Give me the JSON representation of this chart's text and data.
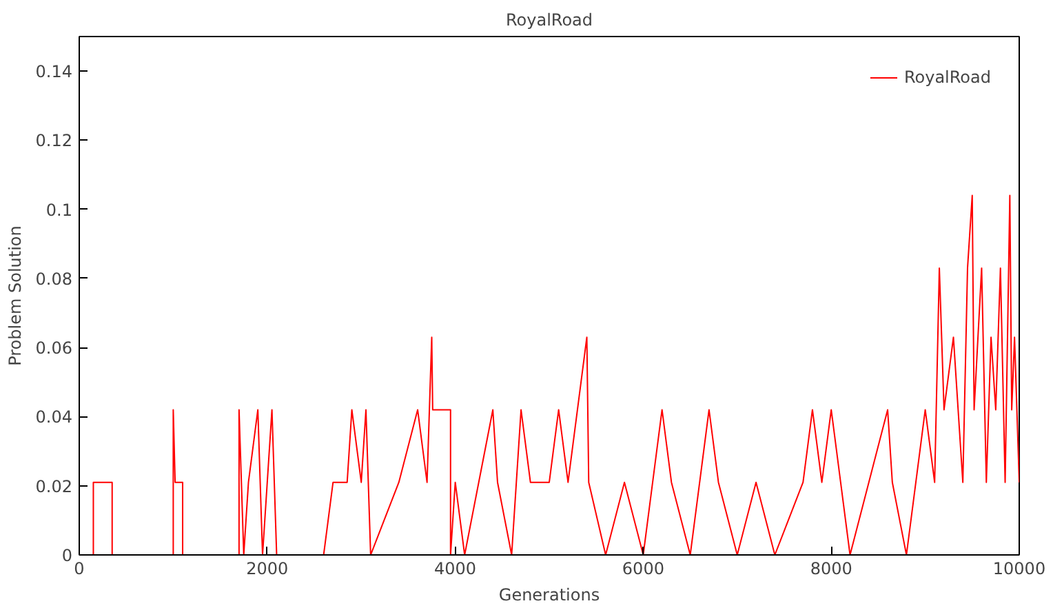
{
  "chart_data": {
    "type": "line",
    "title": "RoyalRoad",
    "xlabel": "Generations",
    "ylabel": "Problem Solution",
    "xlim": [
      0,
      10000
    ],
    "ylim": [
      0,
      0.15
    ],
    "xticks": [
      0,
      2000,
      4000,
      6000,
      8000,
      10000
    ],
    "yticks": [
      0,
      0.02,
      0.04,
      0.06,
      0.08,
      0.1,
      0.12,
      0.14
    ],
    "grid": false,
    "legend": "top right",
    "line_style": "solid",
    "series": [
      {
        "name": "RoyalRoad",
        "color": "#ff0000",
        "x": [
          0,
          150,
          150,
          350,
          350,
          1000,
          1000,
          1020,
          1100,
          1100,
          1700,
          1700,
          1750,
          1800,
          1900,
          1950,
          2000,
          2050,
          2100,
          2600,
          2700,
          2850,
          2900,
          3000,
          3050,
          3100,
          3400,
          3600,
          3700,
          3750,
          3760,
          3950,
          3950,
          4000,
          4100,
          4400,
          4450,
          4600,
          4700,
          4800,
          5000,
          5100,
          5200,
          5300,
          5400,
          5420,
          5600,
          5800,
          6000,
          6200,
          6300,
          6500,
          6700,
          6800,
          7000,
          7200,
          7400,
          7700,
          7800,
          7900,
          8000,
          8100,
          8200,
          8400,
          8600,
          8650,
          8800,
          9000,
          9100,
          9150,
          9200,
          9300,
          9400,
          9450,
          9500,
          9520,
          9600,
          9650,
          9700,
          9750,
          9800,
          9850,
          9900,
          9920,
          9950,
          10000
        ],
        "values": [
          0,
          0,
          0.021,
          0.021,
          0,
          0,
          0.042,
          0.021,
          0.021,
          0,
          0,
          0.042,
          0,
          0.021,
          0.042,
          0,
          0.021,
          0.042,
          0,
          0,
          0.021,
          0.021,
          0.042,
          0.021,
          0.042,
          0,
          0.021,
          0.042,
          0.021,
          0.063,
          0.042,
          0.042,
          0,
          0.021,
          0,
          0.042,
          0.021,
          0,
          0.042,
          0.021,
          0.021,
          0.042,
          0.021,
          0.042,
          0.063,
          0.021,
          0,
          0.021,
          0,
          0.042,
          0.021,
          0,
          0.042,
          0.021,
          0,
          0.021,
          0,
          0.021,
          0.042,
          0.021,
          0.042,
          0.021,
          0,
          0.021,
          0.042,
          0.021,
          0,
          0.042,
          0.021,
          0.083,
          0.042,
          0.063,
          0.021,
          0.083,
          0.104,
          0.042,
          0.083,
          0.021,
          0.063,
          0.042,
          0.083,
          0.021,
          0.104,
          0.042,
          0.063,
          0.021
        ]
      }
    ]
  }
}
